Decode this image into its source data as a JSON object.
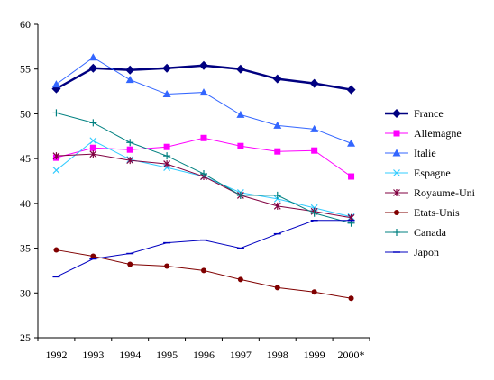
{
  "chart_data": {
    "type": "line",
    "title": "",
    "xlabel": "",
    "ylabel": "",
    "categories": [
      "1992",
      "1993",
      "1994",
      "1995",
      "1996",
      "1997",
      "1998",
      "1999",
      "2000*"
    ],
    "ylim": [
      25,
      60
    ],
    "yticks": [
      25,
      30,
      35,
      40,
      45,
      50,
      55,
      60
    ],
    "grid": false,
    "legend_position": "right",
    "series": [
      {
        "name": "France",
        "color": "#000080",
        "marker": "diamond",
        "bold": true,
        "values": [
          52.8,
          55.1,
          54.9,
          55.1,
          55.4,
          55.0,
          53.9,
          53.4,
          52.7
        ]
      },
      {
        "name": "Allemagne",
        "color": "#ff00ff",
        "marker": "square",
        "values": [
          45.1,
          46.2,
          46.0,
          46.3,
          47.3,
          46.4,
          45.8,
          45.9,
          43.0
        ]
      },
      {
        "name": "Italie",
        "color": "#3366ff",
        "marker": "triangle",
        "values": [
          53.3,
          56.3,
          53.8,
          52.2,
          52.4,
          49.9,
          48.7,
          48.3,
          46.7
        ]
      },
      {
        "name": "Espagne",
        "color": "#33ccff",
        "marker": "x",
        "values": [
          43.7,
          47.0,
          44.9,
          44.0,
          43.0,
          41.2,
          40.5,
          39.5,
          38.5
        ]
      },
      {
        "name": "Royaume-Uni",
        "color": "#800040",
        "marker": "star",
        "values": [
          45.3,
          45.5,
          44.8,
          44.4,
          43.0,
          40.9,
          39.7,
          39.1,
          38.4
        ]
      },
      {
        "name": "Etats-Unis",
        "color": "#800000",
        "marker": "circle",
        "values": [
          34.8,
          34.1,
          33.2,
          33.0,
          32.5,
          31.5,
          30.6,
          30.1,
          29.4
        ]
      },
      {
        "name": "Canada",
        "color": "#008080",
        "marker": "plus",
        "values": [
          50.1,
          49.0,
          46.8,
          45.3,
          43.3,
          40.9,
          40.9,
          38.9,
          37.8
        ]
      },
      {
        "name": "Japon",
        "color": "#0000c0",
        "marker": "dash",
        "values": [
          31.8,
          33.8,
          34.4,
          35.6,
          35.9,
          35.0,
          36.6,
          38.1,
          38.1
        ]
      }
    ]
  }
}
